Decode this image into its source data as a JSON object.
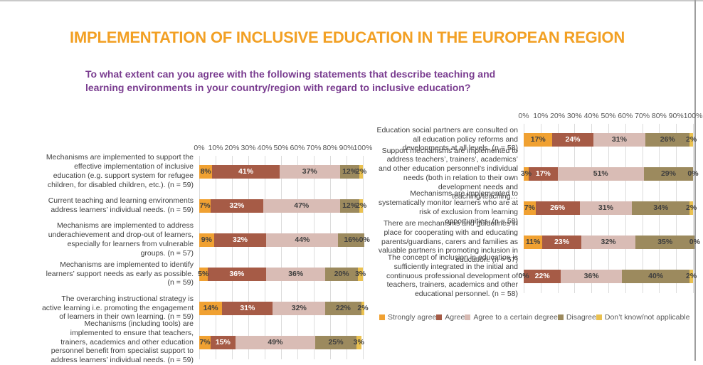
{
  "header": {
    "title": "IMPLEMENTATION OF INCLUSIVE EDUCATION IN THE EUROPEAN REGION",
    "title_color": "#F2A024",
    "subtitle": "To what extent can you agree with the following statements that describe teaching and learning environments in your country/region with regard to inclusive education?",
    "subtitle_color": "#7A3D90"
  },
  "legend": {
    "position": "bottom-right",
    "items": [
      {
        "label": "Strongly agree",
        "color": "#F0A132",
        "value_label_color": "#3F3F3F"
      },
      {
        "label": "Agree",
        "color": "#A65B46",
        "value_label_color": "#FFFFFF"
      },
      {
        "label": "Agree  to a certain degree",
        "color": "#D9BCB5",
        "value_label_color": "#3F3F3F"
      },
      {
        "label": "Disagree",
        "color": "#9C8A5E",
        "value_label_color": "#3F3F3F"
      },
      {
        "label": "Don’t know/not applicable",
        "color": "#EAC150",
        "value_label_color": "#3F3F3F"
      }
    ]
  },
  "chart_data": [
    {
      "type": "bar",
      "orientation": "horizontal-stacked",
      "xlim": [
        0,
        100
      ],
      "grid": true,
      "axis_ticks": [
        "0%",
        "10%",
        "20%",
        "30%",
        "40%",
        "50%",
        "60%",
        "70%",
        "80%",
        "90%",
        "100%"
      ],
      "series_names": [
        "Strongly agree",
        "Agree",
        "Agree to a certain degree",
        "Disagree",
        "Don’t know/not applicable"
      ],
      "rows": [
        {
          "label": "Mechanisms are implemented to support the effective implementation of inclusive education (e.g. support system for refugee children, for disabled children, etc.). (n = 59)",
          "values": [
            8,
            41,
            37,
            12,
            2
          ]
        },
        {
          "label": "Current teaching and learning environments address learners’ individual needs. (n = 59)",
          "values": [
            7,
            32,
            47,
            12,
            2
          ]
        },
        {
          "label": "Mechanisms are implemented to address underachievement and drop-out of learners, especially for learners from vulnerable groups. (n = 57)",
          "values": [
            9,
            32,
            44,
            16,
            0
          ]
        },
        {
          "label": "Mechanisms are implemented to identify learners’ support needs as early as possible. (n = 59)",
          "values": [
            5,
            36,
            36,
            20,
            3
          ]
        },
        {
          "label": "The overarching instructional strategy is active learning i.e. promoting the engagement of learners in their own learning. (n = 59)",
          "values": [
            14,
            31,
            32,
            22,
            2
          ]
        },
        {
          "label": "Mechanisms (including tools) are implemented to ensure that teachers, trainers, academics and other education personnel benefit from specialist support to address learners’ individual needs. (n = 59)",
          "values": [
            7,
            15,
            49,
            25,
            3
          ]
        }
      ]
    },
    {
      "type": "bar",
      "orientation": "horizontal-stacked",
      "xlim": [
        0,
        100
      ],
      "grid": true,
      "axis_ticks": [
        "0%",
        "10%",
        "20%",
        "30%",
        "40%",
        "50%",
        "60%",
        "70%",
        "80%",
        "90%",
        "100%"
      ],
      "series_names": [
        "Strongly agree",
        "Agree",
        "Agree to a certain degree",
        "Disagree",
        "Don’t know/not applicable"
      ],
      "rows": [
        {
          "label": "Education social partners are consulted on all education policy reforms and developments at all levels. (n = 58)",
          "values": [
            17,
            24,
            31,
            26,
            2
          ]
        },
        {
          "label": "Support mechanisms are implemented to address teachers’, trainers’, academics’ and other education personnel’s individual needs (both in relation to their own development needs and teaching/teaching…",
          "values": [
            3,
            17,
            51,
            29,
            0
          ]
        },
        {
          "label": "Mechanisms are implemented to systematically monitor learners who are at risk of exclusion from learning opportunities. (n = 58)",
          "values": [
            7,
            26,
            31,
            34,
            2
          ]
        },
        {
          "label": "There are mechanisms and guidelines in place for cooperating with and educating parents/guardians, carers and families as valuable partners in promoting inclusion in education. (n = 57)",
          "values": [
            11,
            23,
            32,
            35,
            0
          ]
        },
        {
          "label": "The concept of inclusion in education is sufficiently integrated in the initial and continuous professional development of teachers, trainers, academics and other educational personnel.  (n = 58)",
          "values": [
            0,
            22,
            36,
            40,
            2
          ]
        }
      ]
    }
  ]
}
